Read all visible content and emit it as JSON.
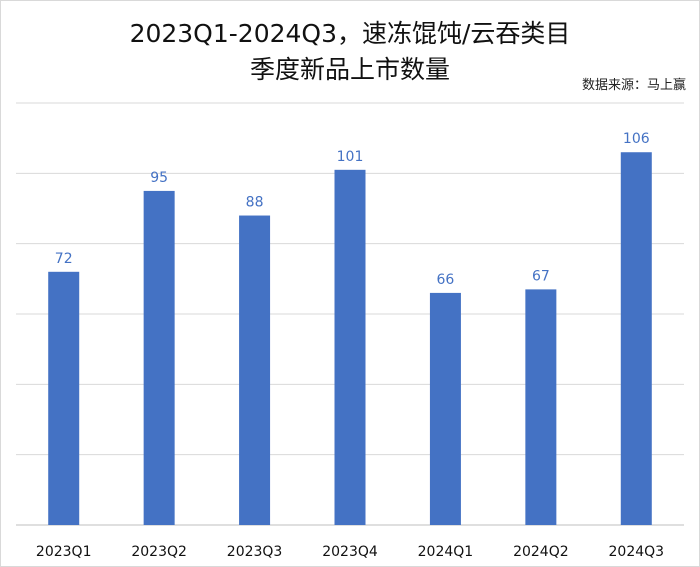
{
  "chart_data": {
    "type": "bar",
    "title_line1": "2023Q1-2024Q3，速冻馄饨/云吞类目",
    "title_line2": "季度新品上市数量",
    "source": "数据来源：马上赢",
    "categories": [
      "2023Q1",
      "2023Q2",
      "2023Q3",
      "2023Q4",
      "2024Q1",
      "2024Q2",
      "2024Q3"
    ],
    "values": [
      72,
      95,
      88,
      101,
      66,
      67,
      106
    ],
    "ylim": [
      0,
      120
    ],
    "grid": true,
    "y_tick_labels_shown": false,
    "bar_color": "#4472C4",
    "label_color": "#4472C4",
    "grid_color": "#d9d9d9"
  }
}
